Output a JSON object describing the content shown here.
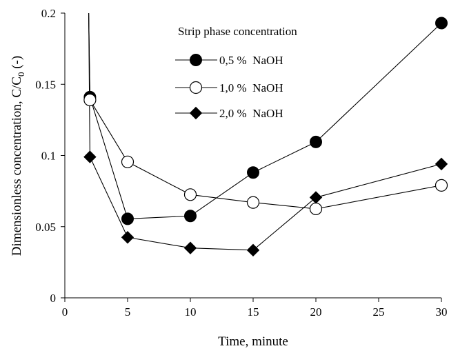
{
  "chart_data": {
    "type": "line",
    "title": "",
    "xlabel": "Time, minute",
    "ylabel": {
      "main": "Dimensionless concentration, C/C",
      "sub": "0",
      "suffix": " (-)"
    },
    "xlim": [
      0,
      30
    ],
    "ylim": [
      0,
      0.2
    ],
    "x_ticks": [
      0,
      5,
      10,
      15,
      20,
      25,
      30
    ],
    "x_tick_labels": [
      "0",
      "5",
      "10",
      "15",
      "20",
      "25",
      "30"
    ],
    "y_ticks": [
      0,
      0.05,
      0.1,
      0.15,
      0.2
    ],
    "y_tick_labels": [
      "0",
      "0.05",
      "0.1",
      "0.15",
      "0.2"
    ],
    "grid": false,
    "legend_title": "Strip phase concentration",
    "legend_position": "top-center",
    "series": [
      {
        "name": "0,5 %  NaOH",
        "marker": "filled-circle",
        "points": [
          [
            1.9,
            0.2
          ],
          [
            2,
            0.141
          ],
          [
            5,
            0.0555
          ],
          [
            10,
            0.0575
          ],
          [
            15,
            0.088
          ],
          [
            20,
            0.1095
          ],
          [
            30,
            0.193
          ]
        ]
      },
      {
        "name": "1,0 %  NaOH",
        "marker": "open-circle",
        "points": [
          [
            1.9,
            0.2
          ],
          [
            2,
            0.139
          ],
          [
            5,
            0.0955
          ],
          [
            10,
            0.0725
          ],
          [
            15,
            0.067
          ],
          [
            20,
            0.0625
          ],
          [
            30,
            0.079
          ]
        ]
      },
      {
        "name": "2,0 %  NaOH",
        "marker": "filled-diamond",
        "points": [
          [
            1.9,
            0.2
          ],
          [
            2,
            0.099
          ],
          [
            5,
            0.0425
          ],
          [
            10,
            0.035
          ],
          [
            15,
            0.0335
          ],
          [
            20,
            0.0705
          ],
          [
            30,
            0.094
          ]
        ]
      }
    ]
  }
}
